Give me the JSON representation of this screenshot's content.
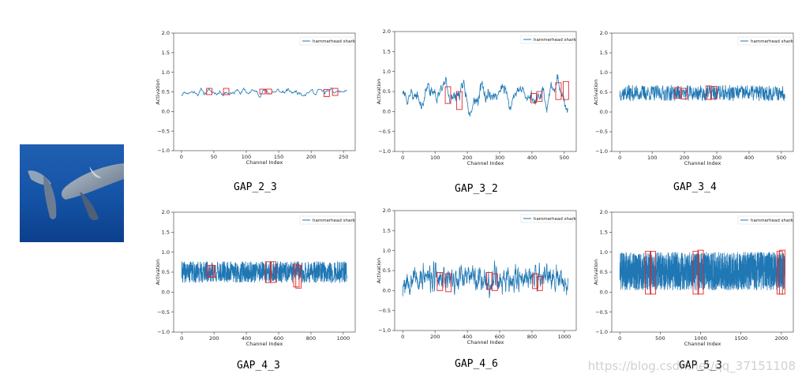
{
  "image": {
    "label": "hammerhead shark photo"
  },
  "colors": {
    "line": "#1f77b4",
    "box": "#e0262a"
  },
  "watermark": "https://blog.csdn.net/qq_37151108",
  "chart_data": [
    {
      "type": "line",
      "title": "GAP_2_3",
      "xlabel": "Channel Index",
      "ylabel": "Activation",
      "legend": "hammerhead shark",
      "legend_position": "top-right",
      "xlim": [
        -12,
        268
      ],
      "ylim": [
        -1.0,
        2.0
      ],
      "xticks": [
        0,
        50,
        100,
        150,
        200,
        250
      ],
      "yticks": [
        "-1.0",
        "-0.5",
        "0.0",
        "0.5",
        "1.0",
        "1.5",
        "2.0"
      ],
      "n": 256,
      "base": 0.5,
      "noise": 0.035,
      "seed": 11,
      "smooth": 2,
      "highlights": [
        {
          "x": 43,
          "y0": 0.43,
          "y1": 0.59
        },
        {
          "x": 69,
          "y0": 0.43,
          "y1": 0.59
        },
        {
          "x": 125,
          "y0": 0.45,
          "y1": 0.57
        },
        {
          "x": 135,
          "y0": 0.45,
          "y1": 0.57
        },
        {
          "x": 224,
          "y0": 0.38,
          "y1": 0.56
        },
        {
          "x": 237,
          "y0": 0.41,
          "y1": 0.59
        }
      ]
    },
    {
      "type": "line",
      "title": "GAP_3_2",
      "xlabel": "Channel Index",
      "ylabel": "Activation",
      "legend": "hammerhead shark",
      "legend_position": "top-right",
      "xlim": [
        -25,
        537
      ],
      "ylim": [
        -1.0,
        2.0
      ],
      "xticks": [
        0,
        100,
        200,
        300,
        400,
        500
      ],
      "yticks": [
        "-1.0",
        "-0.5",
        "0.0",
        "0.5",
        "1.0",
        "1.5",
        "2.0"
      ],
      "n": 512,
      "base": 0.45,
      "noise": 0.2,
      "seed": 23,
      "smooth": 6,
      "highlights": [
        {
          "x": 140,
          "y0": 0.2,
          "y1": 0.62
        },
        {
          "x": 175,
          "y0": 0.05,
          "y1": 0.5
        },
        {
          "x": 405,
          "y0": 0.22,
          "y1": 0.45
        },
        {
          "x": 423,
          "y0": 0.25,
          "y1": 0.5
        },
        {
          "x": 482,
          "y0": 0.3,
          "y1": 0.72
        },
        {
          "x": 505,
          "y0": 0.3,
          "y1": 0.75
        }
      ]
    },
    {
      "type": "line",
      "title": "GAP_3_4",
      "xlabel": "Channel Index",
      "ylabel": "Activation",
      "legend": "hammerhead shark",
      "legend_position": "top-right",
      "xlim": [
        -25,
        537
      ],
      "ylim": [
        -1.0,
        2.0
      ],
      "xticks": [
        0,
        100,
        200,
        300,
        400,
        500
      ],
      "yticks": [
        "-1.0",
        "-0.5",
        "0.0",
        "0.5",
        "1.0",
        "1.5",
        "2.0"
      ],
      "n": 512,
      "base": 0.48,
      "noise": 0.09,
      "seed": 37,
      "smooth": 1,
      "highlights": [
        {
          "x": 178,
          "y0": 0.35,
          "y1": 0.62
        },
        {
          "x": 200,
          "y0": 0.33,
          "y1": 0.6
        },
        {
          "x": 275,
          "y0": 0.32,
          "y1": 0.66
        },
        {
          "x": 292,
          "y0": 0.33,
          "y1": 0.65
        }
      ]
    },
    {
      "type": "line",
      "title": "GAP_4_3",
      "xlabel": "Channel Index",
      "ylabel": "Activation",
      "legend": "hammerhead shark",
      "legend_position": "top-right",
      "xlim": [
        -50,
        1074
      ],
      "ylim": [
        -1.0,
        2.0
      ],
      "xticks": [
        0,
        200,
        400,
        600,
        800,
        1000
      ],
      "yticks": [
        "-1.0",
        "-0.5",
        "0.0",
        "0.5",
        "1.0",
        "1.5",
        "2.0"
      ],
      "n": 1024,
      "base": 0.5,
      "noise": 0.12,
      "seed": 41,
      "smooth": 1,
      "highlights": [
        {
          "x": 175,
          "y0": 0.37,
          "y1": 0.67
        },
        {
          "x": 190,
          "y0": 0.37,
          "y1": 0.67
        },
        {
          "x": 535,
          "y0": 0.24,
          "y1": 0.76
        },
        {
          "x": 565,
          "y0": 0.24,
          "y1": 0.76
        },
        {
          "x": 710,
          "y0": 0.13,
          "y1": 0.7
        },
        {
          "x": 723,
          "y0": 0.1,
          "y1": 0.67
        }
      ]
    },
    {
      "type": "line",
      "title": "GAP_4_6",
      "xlabel": "Channel Index",
      "ylabel": "Activation",
      "legend": "hammerhead shark",
      "legend_position": "top-right",
      "xlim": [
        -50,
        1074
      ],
      "ylim": [
        -1.0,
        2.0
      ],
      "xticks": [
        0,
        200,
        400,
        600,
        800,
        1000
      ],
      "yticks": [
        "-1.0",
        "-0.5",
        "0.0",
        "0.5",
        "1.0",
        "1.5",
        "2.0"
      ],
      "n": 1024,
      "base": 0.3,
      "noise": 0.12,
      "seed": 53,
      "smooth": 2,
      "highlights": [
        {
          "x": 230,
          "y0": 0.0,
          "y1": 0.45
        },
        {
          "x": 283,
          "y0": -0.03,
          "y1": 0.42
        },
        {
          "x": 535,
          "y0": 0.03,
          "y1": 0.45
        },
        {
          "x": 570,
          "y0": 0.0,
          "y1": 0.42
        },
        {
          "x": 820,
          "y0": 0.05,
          "y1": 0.42
        },
        {
          "x": 848,
          "y0": 0.0,
          "y1": 0.35
        }
      ]
    },
    {
      "type": "line",
      "title": "GAP_5_3",
      "xlabel": "Channel Index",
      "ylabel": "Activation",
      "legend": "hammerhead shark",
      "legend_position": "top-right",
      "xlim": [
        -100,
        2148
      ],
      "ylim": [
        -1.0,
        2.0
      ],
      "xticks": [
        0,
        500,
        1000,
        1500,
        2000
      ],
      "yticks": [
        "-1.0",
        "-0.5",
        "0.0",
        "0.5",
        "1.0",
        "1.5",
        "2.0"
      ],
      "n": 2048,
      "base": 0.5,
      "noise": 0.0,
      "seed": 71,
      "smooth": 0,
      "uniform": [
        0.05,
        1.0
      ],
      "highlights": [
        {
          "x": 350,
          "y0": -0.05,
          "y1": 1.02
        },
        {
          "x": 410,
          "y0": -0.05,
          "y1": 1.02
        },
        {
          "x": 940,
          "y0": -0.05,
          "y1": 1.02
        },
        {
          "x": 1000,
          "y0": -0.05,
          "y1": 1.05
        },
        {
          "x": 1980,
          "y0": -0.05,
          "y1": 1.02
        },
        {
          "x": 2010,
          "y0": -0.05,
          "y1": 1.05
        }
      ]
    }
  ]
}
